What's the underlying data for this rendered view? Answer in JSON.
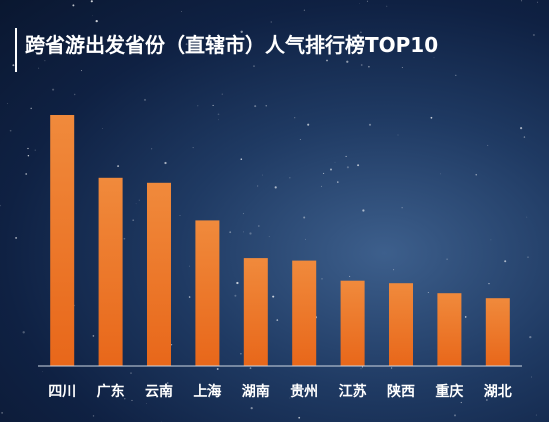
{
  "chart_data": {
    "type": "bar",
    "title": "跨省游出发省份（直辖市）人气排行榜TOP10",
    "categories": [
      "四川",
      "广东",
      "云南",
      "上海",
      "湖南",
      "贵州",
      "江苏",
      "陕西",
      "重庆",
      "湖北"
    ],
    "values": [
      100,
      75,
      73,
      58,
      43,
      42,
      34,
      33,
      29,
      27
    ],
    "ylim": [
      0,
      100
    ],
    "grid": false,
    "legend": "none",
    "bar_color_top": "#f08a3c",
    "bar_color_bottom": "#e8671a",
    "label_color": "#ffffff",
    "axis_color": "#cfd8e3"
  }
}
